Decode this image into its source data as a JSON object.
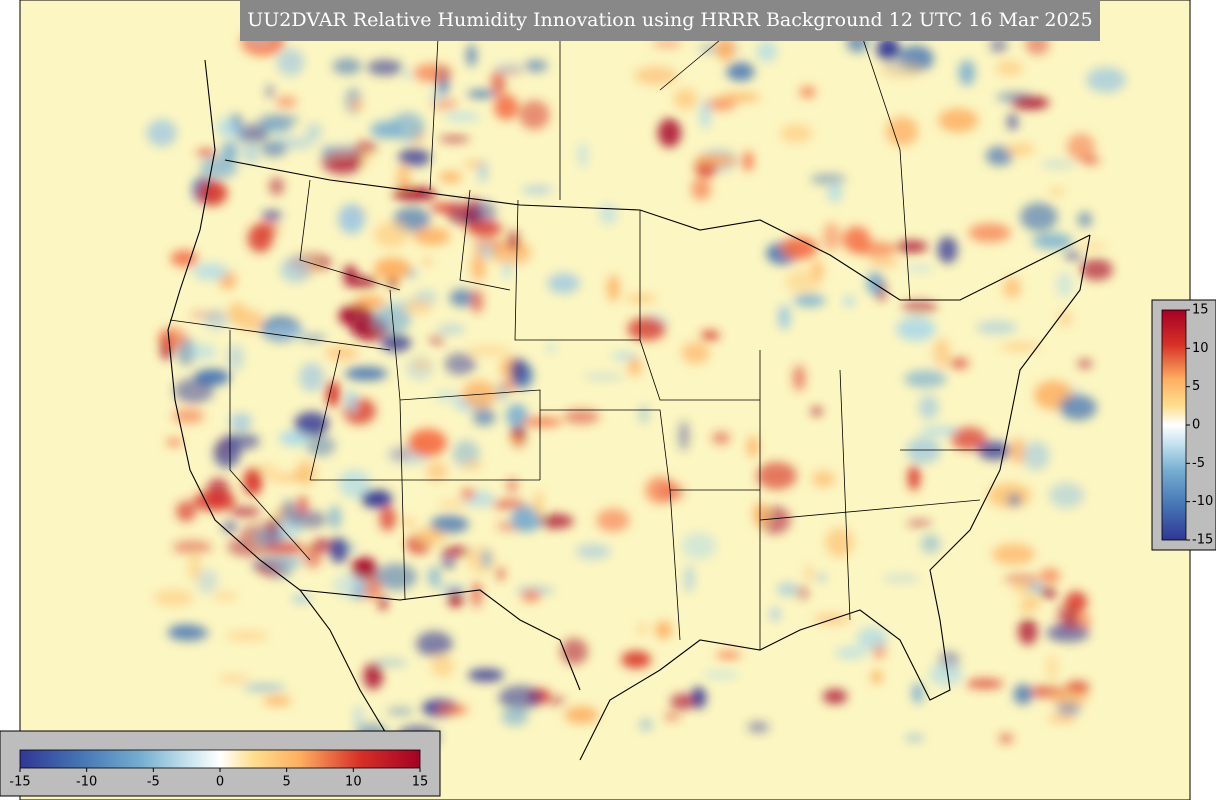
{
  "title": "UU2DVAR Relative Humidity Innovation using HRRR Background 12 UTC 16 Mar 2025",
  "colorbar_horizontal": {
    "range": [
      -15,
      15
    ],
    "ticks": [
      -15,
      -10,
      -5,
      0,
      5,
      10,
      15
    ]
  },
  "colorbar_vertical": {
    "range": [
      -15,
      15
    ],
    "ticks": [
      15,
      10,
      5,
      0,
      -5,
      -10,
      -15
    ]
  }
}
